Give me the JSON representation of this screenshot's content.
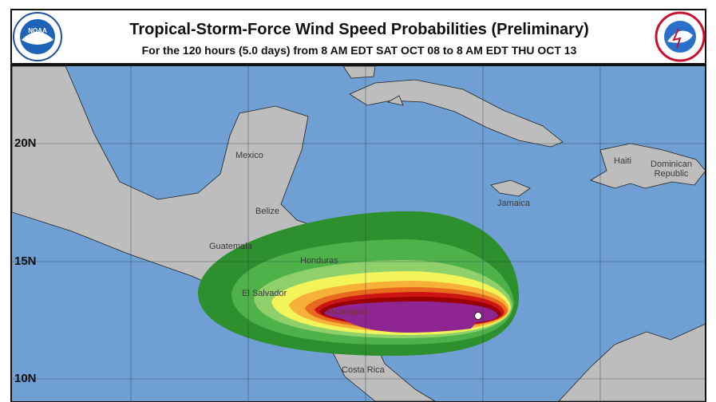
{
  "header": {
    "title": "Tropical-Storm-Force Wind Speed Probabilities (Preliminary)",
    "subtitle": "For the 120 hours (5.0 days) from 8 AM EDT SAT OCT 08 to 8 AM EDT THU OCT 13"
  },
  "map": {
    "latitude_labels": [
      "20N",
      "15N",
      "10N"
    ],
    "place_labels": [
      "Mexico",
      "Belize",
      "Guatemala",
      "Honduras",
      "El Salvador",
      "Nicaragua",
      "Costa Rica",
      "Jamaica",
      "Haiti",
      "Dominican Republic"
    ]
  }
}
